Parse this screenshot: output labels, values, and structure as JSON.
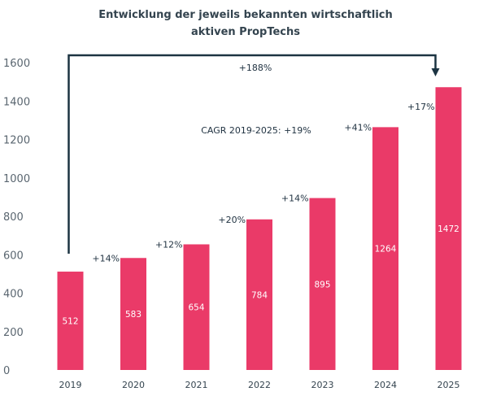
{
  "chart_data": {
    "type": "bar",
    "title": [
      "Entwicklung der jeweils bekannten wirtschaftlich",
      "aktiven PropTechs"
    ],
    "categories": [
      "2019",
      "2020",
      "2021",
      "2022",
      "2023",
      "2024",
      "2025"
    ],
    "values": [
      512,
      583,
      654,
      784,
      895,
      1264,
      1472
    ],
    "data_labels": [
      "512",
      "583",
      "654",
      "784",
      "895",
      "1264",
      "1472"
    ],
    "growth_labels": [
      "+14%",
      "+12%",
      "+20%",
      "+14%",
      "+41%",
      "+17%"
    ],
    "total_growth_label": "+188%",
    "cagr_label": "CAGR 2019-2025: +19%",
    "ylim": [
      0,
      1600
    ],
    "yticks": [
      0,
      200,
      400,
      600,
      800,
      1000,
      1200,
      1400,
      1600
    ],
    "xlabel": "",
    "ylabel": "",
    "grid": false,
    "legend": "none",
    "colors": {
      "bar": "#ea3a68",
      "arrow": "#1c3442",
      "title": "#34444f"
    }
  }
}
